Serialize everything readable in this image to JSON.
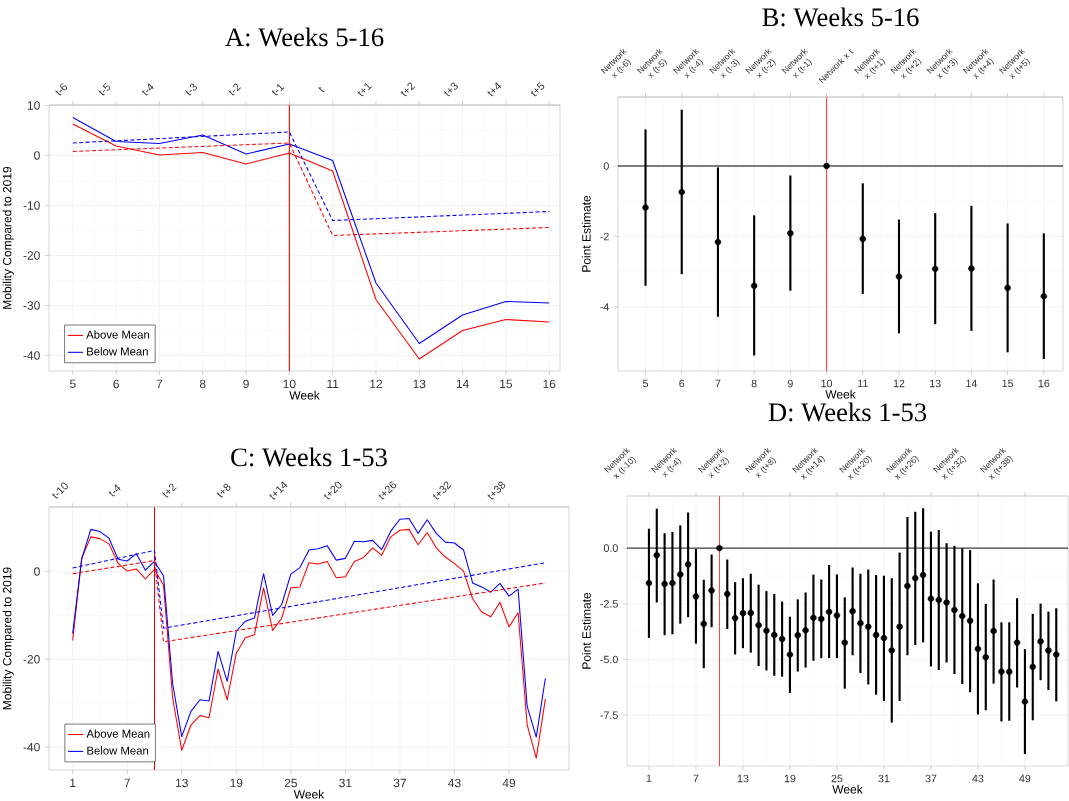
{
  "chart_data": [
    {
      "type": "line",
      "title": "A: Weeks 5-16",
      "xlabel": "Week",
      "ylabel": "Mobility Compared to 2019",
      "x": [
        5,
        6,
        7,
        8,
        9,
        10,
        11,
        12,
        13,
        14,
        15,
        16
      ],
      "series": [
        {
          "name": "Above Mean",
          "color": "#ff0000",
          "values": [
            6.3,
            1.9,
            0.1,
            0.6,
            -1.7,
            0.5,
            -3.1,
            -28.8,
            -40.7,
            -35.0,
            -32.8,
            -33.3
          ]
        },
        {
          "name": "Below Mean",
          "color": "#0000ff",
          "values": [
            7.6,
            2.8,
            2.4,
            4.1,
            0.3,
            2.3,
            -1.0,
            -25.5,
            -37.6,
            -31.9,
            -29.2,
            -29.5
          ]
        },
        {
          "color": "#ff0000",
          "line_style": "dashed",
          "x": [
            5,
            10,
            11,
            16
          ],
          "values": [
            0.8,
            2.5,
            -16.0,
            -14.4
          ]
        },
        {
          "color": "#0000ff",
          "line_style": "dashed",
          "x": [
            5,
            10,
            11,
            16
          ],
          "values": [
            2.5,
            4.7,
            -13.0,
            -11.2
          ]
        }
      ],
      "xlim": [
        4.45,
        16.25
      ],
      "xticks": [
        5,
        6,
        7,
        8,
        9,
        10,
        11,
        12,
        13,
        14,
        15,
        16
      ],
      "ylim": [
        -43.1,
        10.1
      ],
      "yticks": [
        -40,
        -30,
        -20,
        -10,
        0,
        10
      ],
      "annotations": [
        "t-6",
        "t-5",
        "t-4",
        "t-3",
        "t-2",
        "t-1",
        "t",
        "t+1",
        "t+2",
        "t+3",
        "t+4",
        "t+5"
      ],
      "ref_lines": [
        {
          "axis": "x",
          "value": 10,
          "color": "#dd0000"
        }
      ],
      "grid": true,
      "legend": "bottom left",
      "line_style": "solid"
    },
    {
      "type": "scatter",
      "title": "B: Weeks 5-16",
      "xlabel": "Week",
      "ylabel": "Point Estimate",
      "x": [
        5,
        6,
        7,
        8,
        9,
        10,
        11,
        12,
        13,
        14,
        15,
        16
      ],
      "series": [
        {
          "color": "#000000",
          "values": [
            -1.18,
            -0.74,
            -2.16,
            -3.4,
            -1.91,
            0,
            -2.07,
            -3.14,
            -2.92,
            -2.91,
            -3.46,
            -3.7
          ],
          "errors": [
            [
              -3.4,
              1.04
            ],
            [
              -3.07,
              1.6
            ],
            [
              -4.28,
              -0.04
            ],
            [
              -5.38,
              -1.4
            ],
            [
              -3.54,
              -0.27
            ],
            null,
            [
              -3.63,
              -0.49
            ],
            [
              -4.75,
              -1.52
            ],
            [
              -4.49,
              -1.34
            ],
            [
              -4.68,
              -1.13
            ],
            [
              -5.29,
              -1.63
            ],
            [
              -5.48,
              -1.91
            ]
          ]
        }
      ],
      "xlim": [
        4.24,
        16.53
      ],
      "xticks": [
        5,
        6,
        7,
        8,
        9,
        10,
        11,
        12,
        13,
        14,
        15,
        16
      ],
      "ylim": [
        -5.82,
        1.96
      ],
      "yticks": [
        -4,
        -2,
        0
      ],
      "annotations": [
        "Network x (t-6)",
        "Network x (t-5)",
        "Network x (t-4)",
        "Network x (t-3)",
        "Network x (t-2)",
        "Network x (t-1)",
        "Network x t",
        "Network x (t+1)",
        "Network x (t+2)",
        "Network x (t+3)",
        "Network x (t+4)",
        "Network x (t+5)"
      ],
      "ref_lines": [
        {
          "axis": "y",
          "value": 0,
          "color": "#000000"
        },
        {
          "axis": "x",
          "value": 10,
          "color": "#ff4040"
        }
      ],
      "grid": true,
      "marker": "circle"
    },
    {
      "type": "line",
      "title": "C: Weeks 1-53",
      "xlabel": "Week",
      "ylabel": "Mobility Compared to 2019",
      "x": [
        1,
        2,
        3,
        4,
        5,
        6,
        7,
        8,
        9,
        10,
        11,
        12,
        13,
        14,
        15,
        16,
        17,
        18,
        19,
        20,
        21,
        22,
        23,
        24,
        25,
        26,
        27,
        28,
        29,
        30,
        31,
        32,
        33,
        34,
        35,
        36,
        37,
        38,
        39,
        40,
        41,
        42,
        43,
        44,
        45,
        46,
        47,
        48,
        49,
        50,
        51,
        52,
        53
      ],
      "series": [
        {
          "name": "Above Mean",
          "color": "#ff0000",
          "values": [
            -15.7,
            3.1,
            7.9,
            7.5,
            6.3,
            1.9,
            0.1,
            0.6,
            -1.7,
            0.5,
            -3.1,
            -28.8,
            -40.7,
            -35.0,
            -32.8,
            -33.3,
            -22.2,
            -29.2,
            -18.6,
            -15.1,
            -14.4,
            -3.7,
            -13.4,
            -10.6,
            -3.7,
            -3.5,
            2.0,
            1.7,
            2.3,
            -1.4,
            -1.2,
            2.3,
            3.2,
            5.4,
            3.7,
            7.9,
            9.4,
            9.6,
            6.1,
            8.9,
            5.4,
            3.3,
            1.8,
            0.1,
            -6.2,
            -9.2,
            -10.3,
            -7.0,
            -12.6,
            -9.4,
            -34.9,
            -42.5,
            -29.0
          ]
        },
        {
          "name": "Below Mean",
          "color": "#0000ff",
          "values": [
            -14.1,
            2.9,
            9.6,
            9.1,
            7.6,
            2.8,
            2.4,
            4.1,
            0.3,
            2.3,
            -1.0,
            -25.5,
            -37.6,
            -31.9,
            -29.2,
            -29.5,
            -18.2,
            -25.0,
            -13.6,
            -11.3,
            -10.6,
            -0.5,
            -10.0,
            -7.5,
            -0.6,
            0.9,
            4.9,
            5.2,
            5.9,
            2.6,
            3.0,
            6.9,
            6.8,
            7.1,
            5.0,
            9.2,
            11.9,
            12.1,
            8.7,
            11.8,
            8.7,
            6.7,
            6.5,
            4.9,
            -2.6,
            -3.5,
            -4.7,
            -2.7,
            -5.6,
            -4.0,
            -30.7,
            -37.7,
            -24.3
          ]
        },
        {
          "color": "#ff0000",
          "line_style": "dashed",
          "x": [
            1,
            10,
            11,
            53
          ],
          "values": [
            -0.5,
            2.5,
            -16.0,
            -2.6
          ]
        },
        {
          "color": "#0000ff",
          "line_style": "dashed",
          "x": [
            1,
            10,
            11,
            53
          ],
          "values": [
            0.8,
            4.8,
            -12.9,
            2.0
          ]
        }
      ],
      "xlim": [
        -1.6,
        55.6
      ],
      "xticks": [
        1,
        7,
        13,
        19,
        25,
        31,
        37,
        43,
        49
      ],
      "ylim": [
        -45.2,
        14.7
      ],
      "yticks": [
        -40,
        -20,
        0
      ],
      "annotations": [
        "t-10",
        "t-4",
        "t+2",
        "t+8",
        "t+14",
        "t+20",
        "t+26",
        "t+32",
        "t+38"
      ],
      "ref_lines": [
        {
          "axis": "x",
          "value": 10,
          "color": "#dd0000"
        }
      ],
      "grid": true,
      "legend": "bottom left",
      "line_style": "solid"
    },
    {
      "type": "scatter",
      "title": "D: Weeks 1-53",
      "xlabel": "Week",
      "ylabel": "Point Estimate",
      "x": [
        1,
        2,
        3,
        4,
        5,
        6,
        7,
        8,
        9,
        10,
        11,
        12,
        13,
        14,
        15,
        16,
        17,
        18,
        19,
        20,
        21,
        22,
        23,
        24,
        25,
        26,
        27,
        28,
        29,
        30,
        31,
        32,
        33,
        34,
        35,
        36,
        37,
        38,
        39,
        40,
        41,
        42,
        43,
        44,
        45,
        46,
        47,
        48,
        49,
        50,
        51,
        52,
        53
      ],
      "series": [
        {
          "color": "#000000",
          "values": [
            -1.57,
            -0.32,
            -1.61,
            -1.57,
            -1.18,
            -0.73,
            -2.17,
            -3.4,
            -1.9,
            0,
            -2.06,
            -3.14,
            -2.92,
            -2.91,
            -3.46,
            -3.71,
            -3.9,
            -4.08,
            -4.78,
            -3.91,
            -3.69,
            -3.13,
            -3.18,
            -2.86,
            -3.02,
            -4.24,
            -2.83,
            -3.37,
            -3.53,
            -3.9,
            -4.04,
            -4.59,
            -3.53,
            -1.7,
            -1.35,
            -1.21,
            -2.27,
            -2.33,
            -2.44,
            -2.78,
            -3.05,
            -3.26,
            -4.52,
            -4.9,
            -3.72,
            -5.55,
            -5.55,
            -4.24,
            -6.89,
            -5.33,
            -4.19,
            -4.59,
            -4.78
          ],
          "errors": [
            [
              -4.03,
              0.87
            ],
            [
              -2.44,
              1.77
            ],
            [
              -3.91,
              0.67
            ],
            [
              -3.87,
              0.73
            ],
            [
              -3.39,
              1.02
            ],
            [
              -3.1,
              1.6
            ],
            [
              -4.29,
              -0.04
            ],
            [
              -5.39,
              -1.42
            ],
            [
              -3.55,
              -0.29
            ],
            null,
            [
              -3.63,
              -0.51
            ],
            [
              -4.77,
              -1.53
            ],
            [
              -4.49,
              -1.35
            ],
            [
              -4.69,
              -1.15
            ],
            [
              -5.29,
              -1.64
            ],
            [
              -5.49,
              -1.93
            ],
            [
              -5.73,
              -2.06
            ],
            [
              -5.77,
              -2.4
            ],
            [
              -6.5,
              -3.08
            ],
            [
              -5.54,
              -2.3
            ],
            [
              -5.36,
              -1.99
            ],
            [
              -5.06,
              -1.19
            ],
            [
              -4.94,
              -1.41
            ],
            [
              -4.94,
              -0.76
            ],
            [
              -4.94,
              -1.18
            ],
            [
              -6.31,
              -2.21
            ],
            [
              -4.81,
              -0.87
            ],
            [
              -5.61,
              -1.15
            ],
            [
              -6.12,
              -0.96
            ],
            [
              -6.58,
              -1.21
            ],
            [
              -6.86,
              -1.24
            ],
            [
              -7.83,
              -1.35
            ],
            [
              -6.86,
              -0.2
            ],
            [
              -4.81,
              1.4
            ],
            [
              -4.35,
              1.63
            ],
            [
              -4.23,
              1.79
            ],
            [
              -5.31,
              0.74
            ],
            [
              -5.47,
              0.81
            ],
            [
              -5.13,
              0.22
            ],
            [
              -5.65,
              0.1
            ],
            [
              -6.1,
              -0.01
            ],
            [
              -6.47,
              -0.09
            ],
            [
              -7.47,
              -1.58
            ],
            [
              -7.28,
              -2.5
            ],
            [
              -6.08,
              -1.41
            ],
            [
              -7.78,
              -3.33
            ],
            [
              -7.75,
              -3.33
            ],
            [
              -6.26,
              -2.25
            ],
            [
              -9.24,
              -4.53
            ],
            [
              -7.73,
              -2.95
            ],
            [
              -5.93,
              -2.49
            ],
            [
              -6.37,
              -2.85
            ],
            [
              -6.88,
              -2.7
            ]
          ]
        }
      ],
      "xlim": [
        -1.8,
        54.5
      ],
      "xticks": [
        1,
        7,
        13,
        19,
        25,
        31,
        37,
        43,
        49
      ],
      "ylim": [
        -9.78,
        2.34
      ],
      "yticks": [
        -7.5,
        {
          "value": -5,
          "label": "-5.0"
        },
        -2.5,
        {
          "value": 0,
          "label": "0.0"
        }
      ],
      "annotations": [
        "Network x (t-10)",
        "Network x (t-4)",
        "Network x (t+2)",
        "Network x (t+8)",
        "Network x (t+14)",
        "Network x (t+20)",
        "Network x (t+26)",
        "Network x (t+32)",
        "Network x (t+38)"
      ],
      "ref_lines": [
        {
          "axis": "y",
          "value": 0,
          "color": "#000000"
        },
        {
          "axis": "x",
          "value": 10,
          "color": "#ff4040"
        }
      ],
      "grid": true,
      "marker": "circle"
    }
  ]
}
